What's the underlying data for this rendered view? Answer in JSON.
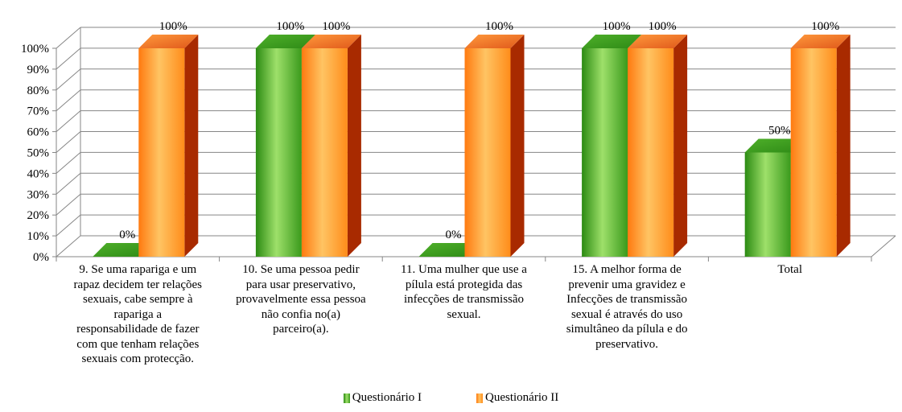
{
  "chart_data": {
    "type": "bar",
    "categories": [
      "9. Se uma rapariga e um rapaz decidem ter relações sexuais, cabe sempre à rapariga a responsabilidade de fazer com que tenham relações sexuais com protecção.",
      "10. Se uma pessoa pedir para usar preservativo, provavelmente essa pessoa não confia no(a) parceiro(a).",
      "11. Uma mulher que use a pílula está protegida das infecções de transmissão sexual.",
      "15. A melhor forma de prevenir uma gravidez e Infecções de transmissão sexual é através do uso simultâneo da pílula e do preservativo.",
      "Total"
    ],
    "category_lines": [
      [
        "9. Se uma rapariga e um",
        "rapaz decidem ter relações",
        "sexuais, cabe sempre à",
        "rapariga a",
        "responsabilidade de fazer",
        "com que tenham relações",
        "sexuais com protecção."
      ],
      [
        "10. Se uma pessoa pedir",
        "para usar preservativo,",
        "provavelmente essa pessoa",
        "não confia no(a)",
        "parceiro(a)."
      ],
      [
        "11. Uma mulher que use a",
        "pílula está protegida das",
        "infecções de transmissão",
        "sexual."
      ],
      [
        "15. A melhor forma de",
        "prevenir uma gravidez e",
        "Infecções de transmissão",
        "sexual é através do uso",
        "simultâneo da pílula e do",
        "preservativo."
      ],
      [
        "Total"
      ]
    ],
    "series": [
      {
        "name": "Questionário I",
        "values": [
          0,
          100,
          0,
          100,
          50
        ],
        "labels": [
          "0%",
          "100%",
          "0%",
          "100%",
          "50%"
        ],
        "color": "#3a9a1c"
      },
      {
        "name": "Questionário II",
        "values": [
          100,
          100,
          100,
          100,
          100
        ],
        "labels": [
          "100%",
          "100%",
          "100%",
          "100%",
          "100%"
        ],
        "color": "#ff8c1a"
      }
    ],
    "y_ticks": [
      "0%",
      "10%",
      "20%",
      "30%",
      "40%",
      "50%",
      "60%",
      "70%",
      "80%",
      "90%",
      "100%"
    ],
    "ylim": [
      0,
      100
    ],
    "grid": true,
    "legend_position": "bottom",
    "three_d": true
  }
}
